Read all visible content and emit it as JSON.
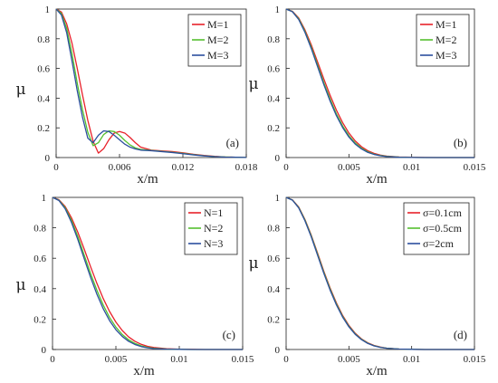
{
  "chart_data": [
    {
      "type": "line",
      "panel_label": "(a)",
      "xlabel": "x/m",
      "ylabel": "μ",
      "xlim": [
        0,
        0.018
      ],
      "ylim": [
        0,
        1
      ],
      "xticks": [
        0,
        0.006,
        0.012,
        0.018
      ],
      "xtick_labels": [
        "0",
        "0.006",
        "0.012",
        "0.018"
      ],
      "yticks": [
        0,
        0.2,
        0.4,
        0.6,
        0.8,
        1
      ],
      "ytick_labels": [
        "0",
        "0.2",
        "0.4",
        "0.6",
        "0.8",
        "1"
      ],
      "legend_position": "top-right",
      "series": [
        {
          "name": "M=1",
          "color": "#e8212a",
          "x": [
            0,
            0.0005,
            0.001,
            0.0015,
            0.002,
            0.0025,
            0.003,
            0.0035,
            0.004,
            0.0045,
            0.005,
            0.0055,
            0.006,
            0.0065,
            0.007,
            0.0075,
            0.008,
            0.009,
            0.01,
            0.011,
            0.012,
            0.013,
            0.014,
            0.015,
            0.016,
            0.017,
            0.018
          ],
          "y": [
            1,
            0.98,
            0.9,
            0.77,
            0.6,
            0.42,
            0.25,
            0.11,
            0.03,
            0.06,
            0.12,
            0.165,
            0.175,
            0.165,
            0.135,
            0.1,
            0.07,
            0.05,
            0.045,
            0.04,
            0.032,
            0.022,
            0.014,
            0.008,
            0.004,
            0.002,
            0.001
          ]
        },
        {
          "name": "M=2",
          "color": "#55c02f",
          "x": [
            0,
            0.0005,
            0.001,
            0.0015,
            0.002,
            0.0025,
            0.003,
            0.0035,
            0.004,
            0.0045,
            0.005,
            0.0055,
            0.006,
            0.0065,
            0.007,
            0.0075,
            0.008,
            0.009,
            0.01,
            0.011,
            0.012,
            0.013,
            0.014,
            0.015,
            0.016,
            0.017,
            0.018
          ],
          "y": [
            1,
            0.97,
            0.87,
            0.7,
            0.5,
            0.32,
            0.17,
            0.08,
            0.1,
            0.155,
            0.18,
            0.175,
            0.15,
            0.115,
            0.085,
            0.065,
            0.055,
            0.048,
            0.042,
            0.036,
            0.028,
            0.02,
            0.012,
            0.007,
            0.004,
            0.002,
            0.001
          ]
        },
        {
          "name": "M=3",
          "color": "#2c4f9e",
          "x": [
            0,
            0.0005,
            0.001,
            0.0015,
            0.002,
            0.0025,
            0.003,
            0.0035,
            0.004,
            0.0045,
            0.005,
            0.0055,
            0.006,
            0.0065,
            0.007,
            0.0075,
            0.008,
            0.009,
            0.01,
            0.011,
            0.012,
            0.013,
            0.014,
            0.015,
            0.016,
            0.017,
            0.018
          ],
          "y": [
            1,
            0.96,
            0.84,
            0.65,
            0.45,
            0.27,
            0.13,
            0.1,
            0.15,
            0.18,
            0.175,
            0.15,
            0.12,
            0.09,
            0.07,
            0.058,
            0.05,
            0.046,
            0.04,
            0.034,
            0.026,
            0.018,
            0.011,
            0.006,
            0.003,
            0.002,
            0.001
          ]
        }
      ]
    },
    {
      "type": "line",
      "panel_label": "(b)",
      "xlabel": "x/m",
      "ylabel": "μ",
      "xlim": [
        0,
        0.015
      ],
      "ylim": [
        0,
        1
      ],
      "xticks": [
        0,
        0.005,
        0.01,
        0.015
      ],
      "xtick_labels": [
        "0",
        "0.005",
        "0.01",
        "0.015"
      ],
      "yticks": [
        0,
        0.2,
        0.4,
        0.6,
        0.8,
        1
      ],
      "ytick_labels": [
        "0",
        "0.2",
        "0.4",
        "0.6",
        "0.8",
        "1"
      ],
      "legend_position": "top-right",
      "series": [
        {
          "name": "M=1",
          "color": "#e8212a",
          "x": [
            0,
            0.0005,
            0.001,
            0.0015,
            0.002,
            0.0025,
            0.003,
            0.0035,
            0.004,
            0.0045,
            0.005,
            0.0055,
            0.006,
            0.0065,
            0.007,
            0.0075,
            0.008,
            0.009,
            0.01,
            0.011,
            0.012,
            0.013,
            0.014,
            0.015
          ],
          "y": [
            1,
            0.985,
            0.94,
            0.86,
            0.76,
            0.645,
            0.53,
            0.42,
            0.32,
            0.235,
            0.165,
            0.112,
            0.073,
            0.046,
            0.028,
            0.017,
            0.01,
            0.004,
            0.002,
            0.001,
            0,
            0,
            0,
            0
          ]
        },
        {
          "name": "M=2",
          "color": "#55c02f",
          "x": [
            0,
            0.0005,
            0.001,
            0.0015,
            0.002,
            0.0025,
            0.003,
            0.0035,
            0.004,
            0.0045,
            0.005,
            0.0055,
            0.006,
            0.0065,
            0.007,
            0.0075,
            0.008,
            0.009,
            0.01,
            0.011,
            0.012,
            0.013,
            0.014,
            0.015
          ],
          "y": [
            1,
            0.983,
            0.935,
            0.85,
            0.745,
            0.625,
            0.505,
            0.395,
            0.295,
            0.213,
            0.147,
            0.098,
            0.063,
            0.039,
            0.023,
            0.014,
            0.008,
            0.003,
            0.001,
            0,
            0,
            0,
            0,
            0
          ]
        },
        {
          "name": "M=3",
          "color": "#2c4f9e",
          "x": [
            0,
            0.0005,
            0.001,
            0.0015,
            0.002,
            0.0025,
            0.003,
            0.0035,
            0.004,
            0.0045,
            0.005,
            0.0055,
            0.006,
            0.0065,
            0.007,
            0.0075,
            0.008,
            0.009,
            0.01,
            0.011,
            0.012,
            0.013,
            0.014,
            0.015
          ],
          "y": [
            1,
            0.982,
            0.93,
            0.843,
            0.735,
            0.613,
            0.492,
            0.381,
            0.283,
            0.202,
            0.138,
            0.091,
            0.058,
            0.035,
            0.021,
            0.012,
            0.007,
            0.002,
            0.001,
            0,
            0,
            0,
            0,
            0
          ]
        }
      ]
    },
    {
      "type": "line",
      "panel_label": "(c)",
      "xlabel": "x/m",
      "ylabel": "μ",
      "xlim": [
        0,
        0.015
      ],
      "ylim": [
        0,
        1
      ],
      "xticks": [
        0,
        0.005,
        0.01,
        0.015
      ],
      "xtick_labels": [
        "0",
        "0.005",
        "0.01",
        "0.015"
      ],
      "yticks": [
        0,
        0.2,
        0.4,
        0.6,
        0.8,
        1
      ],
      "ytick_labels": [
        "0",
        "0.2",
        "0.4",
        "0.6",
        "0.8",
        "1"
      ],
      "legend_position": "top-right",
      "series": [
        {
          "name": "N=1",
          "color": "#e8212a",
          "x": [
            0,
            0.0005,
            0.001,
            0.0015,
            0.002,
            0.0025,
            0.003,
            0.0035,
            0.004,
            0.0045,
            0.005,
            0.0055,
            0.006,
            0.0065,
            0.007,
            0.0075,
            0.008,
            0.009,
            0.01,
            0.011,
            0.012,
            0.013,
            0.014,
            0.015
          ],
          "y": [
            1,
            0.985,
            0.94,
            0.865,
            0.77,
            0.66,
            0.545,
            0.435,
            0.335,
            0.25,
            0.18,
            0.125,
            0.083,
            0.054,
            0.034,
            0.021,
            0.013,
            0.005,
            0.002,
            0.001,
            0,
            0,
            0,
            0
          ]
        },
        {
          "name": "N=2",
          "color": "#55c02f",
          "x": [
            0,
            0.0005,
            0.001,
            0.0015,
            0.002,
            0.0025,
            0.003,
            0.0035,
            0.004,
            0.0045,
            0.005,
            0.0055,
            0.006,
            0.0065,
            0.007,
            0.0075,
            0.008,
            0.009,
            0.01,
            0.011,
            0.012,
            0.013,
            0.014,
            0.015
          ],
          "y": [
            1,
            0.982,
            0.932,
            0.848,
            0.742,
            0.62,
            0.5,
            0.39,
            0.292,
            0.211,
            0.147,
            0.099,
            0.064,
            0.04,
            0.024,
            0.014,
            0.008,
            0.003,
            0.001,
            0,
            0,
            0,
            0,
            0
          ]
        },
        {
          "name": "N=3",
          "color": "#2c4f9e",
          "x": [
            0,
            0.0005,
            0.001,
            0.0015,
            0.002,
            0.0025,
            0.003,
            0.0035,
            0.004,
            0.0045,
            0.005,
            0.0055,
            0.006,
            0.0065,
            0.007,
            0.0075,
            0.008,
            0.009,
            0.01,
            0.011,
            0.012,
            0.013,
            0.014,
            0.015
          ],
          "y": [
            1,
            0.98,
            0.925,
            0.835,
            0.722,
            0.597,
            0.475,
            0.364,
            0.268,
            0.19,
            0.13,
            0.086,
            0.054,
            0.033,
            0.019,
            0.011,
            0.006,
            0.002,
            0.001,
            0,
            0,
            0,
            0,
            0
          ]
        }
      ]
    },
    {
      "type": "line",
      "panel_label": "(d)",
      "xlabel": "x/m",
      "ylabel": "μ",
      "xlim": [
        0,
        0.015
      ],
      "ylim": [
        0,
        1
      ],
      "xticks": [
        0,
        0.005,
        0.01,
        0.015
      ],
      "xtick_labels": [
        "0",
        "0.005",
        "0.01",
        "0.015"
      ],
      "yticks": [
        0,
        0.2,
        0.4,
        0.6,
        0.8,
        1
      ],
      "ytick_labels": [
        "0",
        "0.2",
        "0.4",
        "0.6",
        "0.8",
        "1"
      ],
      "legend_position": "top-right",
      "series": [
        {
          "name": "σ=0.1cm",
          "color": "#e8212a",
          "x": [
            0,
            0.0005,
            0.001,
            0.0015,
            0.002,
            0.0025,
            0.003,
            0.0035,
            0.004,
            0.0045,
            0.005,
            0.0055,
            0.006,
            0.0065,
            0.007,
            0.0075,
            0.008,
            0.009,
            0.01,
            0.011,
            0.012,
            0.013,
            0.014,
            0.015
          ],
          "y": [
            1,
            0.984,
            0.937,
            0.855,
            0.752,
            0.635,
            0.515,
            0.405,
            0.307,
            0.224,
            0.158,
            0.107,
            0.07,
            0.044,
            0.027,
            0.016,
            0.009,
            0.003,
            0.001,
            0,
            0,
            0,
            0,
            0
          ]
        },
        {
          "name": "σ=0.5cm",
          "color": "#55c02f",
          "x": [
            0,
            0.0005,
            0.001,
            0.0015,
            0.002,
            0.0025,
            0.003,
            0.0035,
            0.004,
            0.0045,
            0.005,
            0.0055,
            0.006,
            0.0065,
            0.007,
            0.0075,
            0.008,
            0.009,
            0.01,
            0.011,
            0.012,
            0.013,
            0.014,
            0.015
          ],
          "y": [
            1,
            0.983,
            0.934,
            0.851,
            0.747,
            0.628,
            0.508,
            0.398,
            0.3,
            0.218,
            0.153,
            0.103,
            0.067,
            0.042,
            0.025,
            0.015,
            0.009,
            0.003,
            0.001,
            0,
            0,
            0,
            0,
            0
          ]
        },
        {
          "name": "σ=2cm",
          "color": "#2c4f9e",
          "x": [
            0,
            0.0005,
            0.001,
            0.0015,
            0.002,
            0.0025,
            0.003,
            0.0035,
            0.004,
            0.0045,
            0.005,
            0.0055,
            0.006,
            0.0065,
            0.007,
            0.0075,
            0.008,
            0.009,
            0.01,
            0.011,
            0.012,
            0.013,
            0.014,
            0.015
          ],
          "y": [
            1,
            0.982,
            0.931,
            0.846,
            0.741,
            0.621,
            0.501,
            0.391,
            0.294,
            0.213,
            0.149,
            0.1,
            0.065,
            0.04,
            0.024,
            0.014,
            0.008,
            0.003,
            0.001,
            0,
            0,
            0,
            0,
            0
          ]
        }
      ]
    }
  ]
}
